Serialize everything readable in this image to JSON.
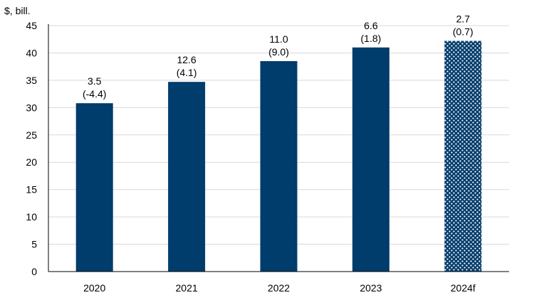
{
  "colors": {
    "bar": "#003c6c",
    "gridline": "#d9d9d9",
    "axis": "#000000",
    "pattern_dot": "#ffffff"
  },
  "chart_data": {
    "type": "bar",
    "ylabel": "$, bill.",
    "ylim": [
      0,
      45
    ],
    "ytick_step": 5,
    "ytick_labels": [
      "0",
      "5",
      "10",
      "15",
      "20",
      "25",
      "30",
      "35",
      "40",
      "45"
    ],
    "grid": true,
    "categories": [
      "2020",
      "2021",
      "2022",
      "2023",
      "2024f"
    ],
    "values": [
      30.8,
      34.7,
      38.5,
      41.0,
      42.2
    ],
    "patterned": [
      false,
      false,
      false,
      false,
      true
    ],
    "label_line1": [
      "3.5",
      "12.6",
      "11.0",
      "6.6",
      "2.7"
    ],
    "label_line2": [
      "(-4.4)",
      "(4.1)",
      "(9.0)",
      "(1.8)",
      "(0.7)"
    ]
  }
}
